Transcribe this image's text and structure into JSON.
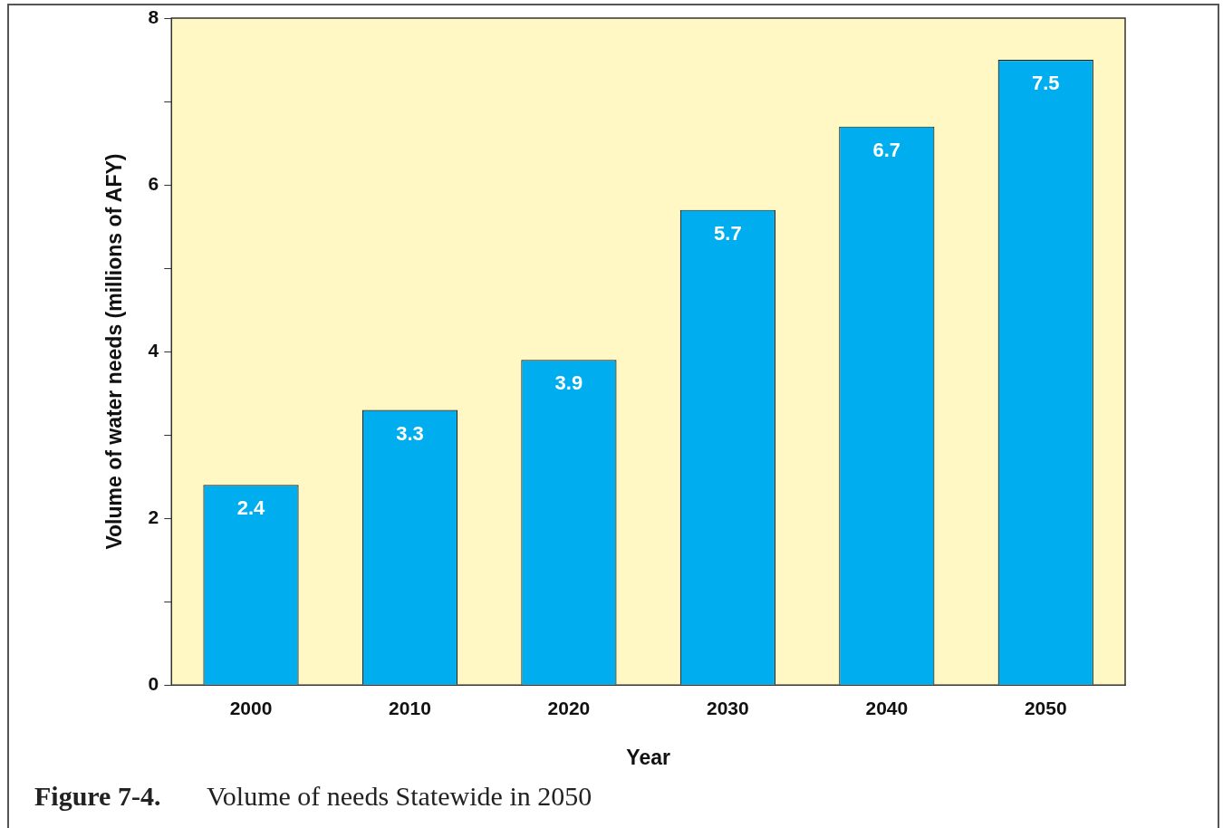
{
  "chart_data": {
    "type": "bar",
    "xlabel": "Year",
    "ylabel": "Volume of water needs (millions of AFY)",
    "categories": [
      "2000",
      "2010",
      "2020",
      "2030",
      "2040",
      "2050"
    ],
    "values": [
      2.4,
      3.3,
      3.9,
      5.7,
      6.7,
      7.5
    ],
    "color": "#00aeef",
    "data_labels": true,
    "ylim": [
      0,
      8
    ],
    "yticks": [
      0,
      {
        "value": 1,
        "label": null
      },
      2,
      {
        "value": 3,
        "label": null
      },
      4,
      {
        "value": 5,
        "label": null
      },
      6,
      {
        "value": 7,
        "label": null
      },
      8
    ],
    "grid": false,
    "legend": false,
    "annotations": [
      "Figure 7-4.",
      "Volume of needs Statewide in 2050"
    ]
  }
}
